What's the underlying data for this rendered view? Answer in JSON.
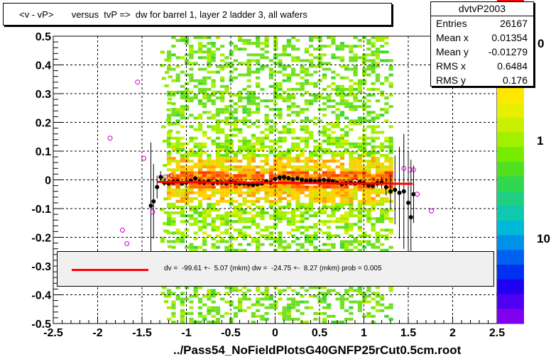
{
  "title": "<v - vP>       versus  tvP =>  dw for barrel 1, layer 2 ladder 3, all wafers",
  "stats": {
    "name": "dvtvP2003",
    "rows": [
      {
        "label": "Entries",
        "value": "26167"
      },
      {
        "label": "Mean x",
        "value": "0.01354"
      },
      {
        "label": "Mean y",
        "value": "-0.01279"
      },
      {
        "label": "RMS x",
        "value": "0.6484"
      },
      {
        "label": "RMS y",
        "value": "0.176"
      }
    ]
  },
  "fit_text": "dv =  -99.61 +-  5.07 (mkm) dw =  -24.75 +-  8.27 (mkm) prob = 0.005",
  "footer": "../Pass54_NoFieldPlotsG40GNFP25rCut0.5cm.root",
  "colors": {
    "fit_line": "#ff0000",
    "profile_points": "#000000",
    "outlier_marker": "#cc00cc"
  },
  "chart_data": {
    "type": "heatmap",
    "xlim": [
      -2.5,
      2.5
    ],
    "ylim": [
      -0.5,
      0.5
    ],
    "x_ticks": [
      "-2.5",
      "-2",
      "-1.5",
      "-1",
      "-0.5",
      "0",
      "0.5",
      "1",
      "1.5",
      "2",
      "2.5"
    ],
    "y_ticks": [
      "-0.5",
      "-0.4",
      "-0.3",
      "-0.2",
      "-0.1",
      "0",
      "0.1",
      "0.2",
      "0.3",
      "0.4",
      "0.5"
    ],
    "grid": true,
    "colorbar_labels": [
      "1",
      "10"
    ],
    "colorbar_partial_label": "0",
    "fit_line": {
      "x": [
        -1.33,
        1.55
      ],
      "y": [
        -0.007,
        -0.014
      ]
    },
    "profile": {
      "x": [
        -1.4,
        -1.37,
        -1.33,
        -1.29,
        -1.25,
        -1.2,
        -1.15,
        -1.1,
        -1.05,
        -1.0,
        -0.95,
        -0.9,
        -0.85,
        -0.8,
        -0.75,
        -0.7,
        -0.65,
        -0.6,
        -0.55,
        -0.5,
        -0.45,
        -0.4,
        -0.35,
        -0.3,
        -0.25,
        -0.2,
        -0.15,
        -0.1,
        -0.05,
        0.0,
        0.05,
        0.1,
        0.15,
        0.2,
        0.25,
        0.3,
        0.35,
        0.4,
        0.45,
        0.5,
        0.55,
        0.6,
        0.65,
        0.7,
        0.75,
        0.8,
        0.85,
        0.9,
        0.95,
        1.0,
        1.05,
        1.1,
        1.15,
        1.2,
        1.25,
        1.3,
        1.35,
        1.4,
        1.45,
        1.5,
        1.53,
        1.56
      ],
      "y": [
        -0.09,
        -0.075,
        -0.025,
        0.01,
        -0.01,
        -0.012,
        -0.008,
        -0.005,
        -0.013,
        -0.01,
        -0.003,
        0.005,
        -0.008,
        -0.01,
        -0.005,
        -0.012,
        -0.008,
        -0.01,
        -0.012,
        -0.008,
        -0.01,
        -0.013,
        -0.012,
        -0.015,
        -0.018,
        -0.015,
        -0.012,
        -0.005,
        -0.01,
        0.003,
        0.008,
        0.01,
        0.006,
        0.002,
        0.005,
        0.0,
        -0.003,
        -0.002,
        -0.005,
        -0.003,
        0.0,
        -0.003,
        -0.005,
        -0.01,
        -0.015,
        -0.012,
        -0.01,
        -0.012,
        -0.008,
        -0.012,
        -0.018,
        -0.02,
        -0.012,
        -0.01,
        -0.025,
        -0.04,
        -0.035,
        -0.045,
        -0.04,
        -0.08,
        -0.13,
        -0.05
      ],
      "err": [
        0.22,
        0.13,
        0.04,
        0.02,
        0.012,
        0.01,
        0.01,
        0.008,
        0.008,
        0.008,
        0.008,
        0.008,
        0.008,
        0.008,
        0.008,
        0.008,
        0.008,
        0.008,
        0.008,
        0.008,
        0.008,
        0.008,
        0.008,
        0.008,
        0.008,
        0.008,
        0.008,
        0.008,
        0.008,
        0.008,
        0.008,
        0.008,
        0.008,
        0.008,
        0.008,
        0.008,
        0.008,
        0.008,
        0.008,
        0.008,
        0.008,
        0.008,
        0.008,
        0.008,
        0.008,
        0.008,
        0.008,
        0.008,
        0.008,
        0.01,
        0.01,
        0.012,
        0.015,
        0.02,
        0.03,
        0.06,
        0.12,
        0.16,
        0.2,
        0.18,
        0.2,
        0.1
      ]
    },
    "outliers": {
      "x": [
        -1.86,
        -1.55,
        -1.48,
        -1.72,
        -1.67,
        -1.38,
        -1.17,
        -1.24,
        1.45,
        1.52,
        1.56,
        1.6,
        1.76
      ],
      "y": [
        0.145,
        0.34,
        0.075,
        -0.175,
        -0.222,
        -0.112,
        0.015,
        0.01,
        0.04,
        0.035,
        0.035,
        -0.05,
        -0.108
      ]
    }
  }
}
